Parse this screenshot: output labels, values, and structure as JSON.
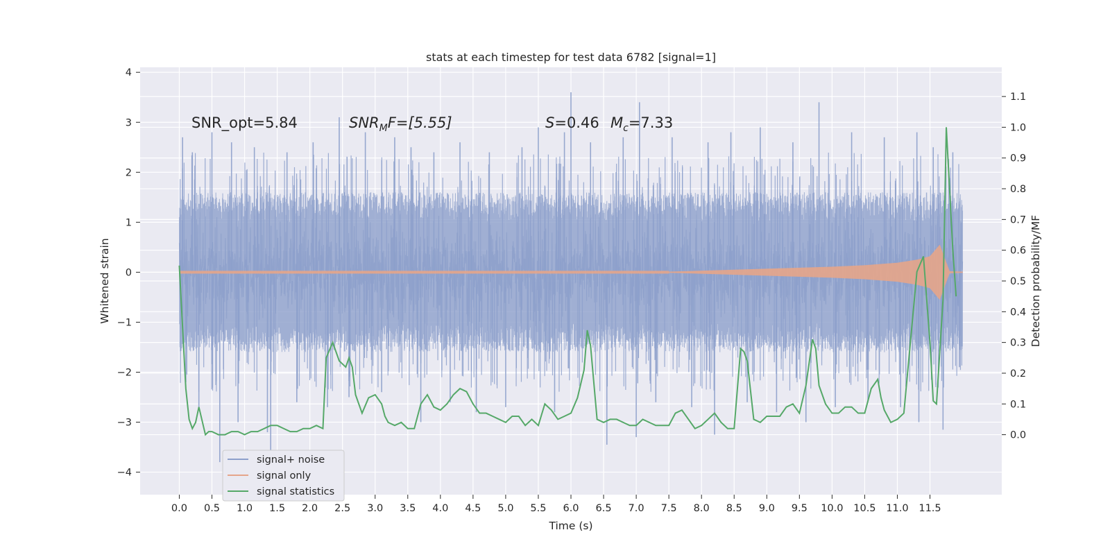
{
  "chart_data": {
    "type": "line",
    "title": "stats at each timestep for test data 6782 [signal=1]",
    "xlabel": "Time (s)",
    "ylabel": "Whitened strain",
    "ylabel_right": "Detection probability/MF",
    "xlim": [
      -0.6,
      12.6
    ],
    "ylim": [
      -4.45,
      4.1
    ],
    "ylim_right": [
      -0.195,
      1.195
    ],
    "x_ticks": [
      0.0,
      0.5,
      1.0,
      1.5,
      2.0,
      2.5,
      3.0,
      3.5,
      4.0,
      4.5,
      5.0,
      5.5,
      6.0,
      6.5,
      7.0,
      7.5,
      8.0,
      8.5,
      9.0,
      9.5,
      10.0,
      10.5,
      11.0,
      11.5
    ],
    "x_tick_labels": [
      "0.0",
      "0.5",
      "1.0",
      "1.5",
      "2.0",
      "2.5",
      "3.0",
      "3.5",
      "4.0",
      "4.5",
      "5.0",
      "5.5",
      "6.0",
      "6.5",
      "7.0",
      "7.5",
      "8.0",
      "8.5",
      "9.0",
      "9.5",
      "10.0",
      "10.5",
      "11.0",
      "11.5"
    ],
    "y_ticks": [
      -4,
      -3,
      -2,
      -1,
      0,
      1,
      2,
      3,
      4
    ],
    "y_tick_labels": [
      "−4",
      "−3",
      "−2",
      "−1",
      "0",
      "1",
      "2",
      "3",
      "4"
    ],
    "y_right_ticks": [
      0.0,
      0.1,
      0.2,
      0.3,
      0.4,
      0.5,
      0.6,
      0.7,
      0.8,
      0.9,
      1.0,
      1.1
    ],
    "y_right_tick_labels": [
      "0.0",
      "0.1",
      "0.2",
      "0.3",
      "0.4",
      "0.5",
      "0.6",
      "0.7",
      "0.8",
      "0.9",
      "1.0",
      "1.1"
    ],
    "annotations": {
      "snr_opt": "SNR_opt=5.84",
      "snr_mf_main": "SNR",
      "snr_mf_sub": "M",
      "snr_mf_rest": "F=[5.55]",
      "s_label": "S",
      "s_value": "=0.46",
      "mc_main": "M",
      "mc_sub": "c",
      "mc_value": "=7.33"
    },
    "legend": {
      "position": "lower-left",
      "entries": [
        "signal+ noise",
        "signal only",
        "signal statistics"
      ]
    },
    "series": [
      {
        "name": "signal+ noise",
        "axis": "left",
        "color": "#8da0cb",
        "x_range": [
          0.0,
          12.0
        ],
        "envelope_typical": [
          -1.7,
          1.7
        ],
        "spikes": [
          {
            "x": 0.05,
            "y": 2.7
          },
          {
            "x": 0.1,
            "y": -2.2
          },
          {
            "x": 0.2,
            "y": 2.4
          },
          {
            "x": 0.3,
            "y": -2.7
          },
          {
            "x": 0.5,
            "y": 2.8
          },
          {
            "x": 0.62,
            "y": -3.8
          },
          {
            "x": 0.8,
            "y": 2.6
          },
          {
            "x": 0.9,
            "y": -3.0
          },
          {
            "x": 1.15,
            "y": 2.5
          },
          {
            "x": 1.35,
            "y": -3.2
          },
          {
            "x": 1.4,
            "y": -3.6
          },
          {
            "x": 1.65,
            "y": 2.4
          },
          {
            "x": 1.8,
            "y": -2.6
          },
          {
            "x": 2.05,
            "y": 2.6
          },
          {
            "x": 2.27,
            "y": -2.7
          },
          {
            "x": 2.45,
            "y": 3.1
          },
          {
            "x": 2.6,
            "y": -2.5
          },
          {
            "x": 2.85,
            "y": 2.8
          },
          {
            "x": 3.1,
            "y": -2.4
          },
          {
            "x": 3.3,
            "y": 2.7
          },
          {
            "x": 3.55,
            "y": 2.5
          },
          {
            "x": 3.7,
            "y": -3.0
          },
          {
            "x": 3.9,
            "y": 2.4
          },
          {
            "x": 4.15,
            "y": -2.6
          },
          {
            "x": 4.3,
            "y": 2.6
          },
          {
            "x": 4.55,
            "y": -2.8
          },
          {
            "x": 4.75,
            "y": 2.4
          },
          {
            "x": 5.0,
            "y": -2.7
          },
          {
            "x": 5.25,
            "y": 2.5
          },
          {
            "x": 5.5,
            "y": 2.9
          },
          {
            "x": 5.75,
            "y": -2.8
          },
          {
            "x": 5.9,
            "y": 2.8
          },
          {
            "x": 6.0,
            "y": 3.6
          },
          {
            "x": 6.3,
            "y": 2.6
          },
          {
            "x": 6.55,
            "y": -3.45
          },
          {
            "x": 6.8,
            "y": 2.7
          },
          {
            "x": 7.05,
            "y": 3.4
          },
          {
            "x": 7.0,
            "y": -3.3
          },
          {
            "x": 7.3,
            "y": -2.6
          },
          {
            "x": 7.55,
            "y": 2.7
          },
          {
            "x": 7.85,
            "y": -2.7
          },
          {
            "x": 8.1,
            "y": 2.6
          },
          {
            "x": 8.2,
            "y": -3.25
          },
          {
            "x": 8.45,
            "y": 2.8
          },
          {
            "x": 8.7,
            "y": -2.6
          },
          {
            "x": 8.9,
            "y": 2.9
          },
          {
            "x": 9.15,
            "y": -2.8
          },
          {
            "x": 9.4,
            "y": 2.6
          },
          {
            "x": 9.6,
            "y": -3.0
          },
          {
            "x": 9.8,
            "y": 3.4
          },
          {
            "x": 10.05,
            "y": -2.7
          },
          {
            "x": 10.3,
            "y": 2.8
          },
          {
            "x": 10.55,
            "y": -2.6
          },
          {
            "x": 10.8,
            "y": 2.7
          },
          {
            "x": 11.05,
            "y": -2.7
          },
          {
            "x": 11.3,
            "y": 2.8
          },
          {
            "x": 11.33,
            "y": -3.0
          },
          {
            "x": 11.55,
            "y": 2.5
          },
          {
            "x": 11.7,
            "y": -3.15
          },
          {
            "x": 11.85,
            "y": 2.4
          },
          {
            "x": 11.95,
            "y": -1.9
          }
        ]
      },
      {
        "name": "signal only",
        "axis": "left",
        "color": "#e5a58a",
        "description": "chirp: amplitude ~0 until 7.5 s, growing to about 0.3 at 11.5 s, peak near 11.65 s",
        "envelope": [
          {
            "x": 0.0,
            "a": 0.01
          },
          {
            "x": 7.5,
            "a": 0.01
          },
          {
            "x": 8.0,
            "a": 0.03
          },
          {
            "x": 8.5,
            "a": 0.05
          },
          {
            "x": 9.0,
            "a": 0.07
          },
          {
            "x": 9.5,
            "a": 0.09
          },
          {
            "x": 10.0,
            "a": 0.11
          },
          {
            "x": 10.5,
            "a": 0.14
          },
          {
            "x": 11.0,
            "a": 0.19
          },
          {
            "x": 11.3,
            "a": 0.25
          },
          {
            "x": 11.5,
            "a": 0.32
          },
          {
            "x": 11.65,
            "a": 0.55
          },
          {
            "x": 11.72,
            "a": 0.3
          },
          {
            "x": 11.8,
            "a": 0.02
          },
          {
            "x": 12.0,
            "a": 0.01
          }
        ]
      },
      {
        "name": "signal statistics",
        "axis": "right",
        "color": "#55a868",
        "x": [
          0.0,
          0.1,
          0.15,
          0.2,
          0.25,
          0.3,
          0.4,
          0.45,
          0.5,
          0.6,
          0.7,
          0.8,
          0.9,
          1.0,
          1.1,
          1.2,
          1.3,
          1.4,
          1.5,
          1.6,
          1.7,
          1.8,
          1.9,
          2.0,
          2.1,
          2.2,
          2.25,
          2.35,
          2.45,
          2.55,
          2.6,
          2.65,
          2.7,
          2.8,
          2.9,
          3.0,
          3.1,
          3.15,
          3.2,
          3.3,
          3.4,
          3.5,
          3.6,
          3.7,
          3.8,
          3.9,
          4.0,
          4.1,
          4.2,
          4.3,
          4.4,
          4.5,
          4.6,
          4.7,
          4.8,
          4.9,
          5.0,
          5.1,
          5.2,
          5.3,
          5.4,
          5.5,
          5.6,
          5.7,
          5.8,
          5.9,
          6.0,
          6.1,
          6.2,
          6.25,
          6.3,
          6.4,
          6.5,
          6.6,
          6.7,
          6.8,
          6.9,
          7.0,
          7.1,
          7.2,
          7.3,
          7.4,
          7.5,
          7.6,
          7.7,
          7.8,
          7.9,
          8.0,
          8.1,
          8.2,
          8.3,
          8.4,
          8.5,
          8.6,
          8.65,
          8.7,
          8.8,
          8.9,
          9.0,
          9.1,
          9.2,
          9.3,
          9.4,
          9.5,
          9.6,
          9.7,
          9.75,
          9.8,
          9.9,
          10.0,
          10.1,
          10.2,
          10.3,
          10.4,
          10.5,
          10.6,
          10.7,
          10.75,
          10.8,
          10.9,
          11.0,
          11.1,
          11.2,
          11.3,
          11.4,
          11.5,
          11.55,
          11.6,
          11.7,
          11.75,
          11.8,
          11.85,
          11.9
        ],
        "values": [
          0.55,
          0.15,
          0.05,
          0.02,
          0.04,
          0.09,
          0.0,
          0.01,
          0.01,
          0.0,
          0.0,
          0.01,
          0.01,
          0.0,
          0.01,
          0.01,
          0.02,
          0.03,
          0.03,
          0.02,
          0.01,
          0.01,
          0.02,
          0.02,
          0.03,
          0.02,
          0.25,
          0.3,
          0.24,
          0.22,
          0.25,
          0.22,
          0.13,
          0.07,
          0.12,
          0.13,
          0.1,
          0.06,
          0.04,
          0.03,
          0.04,
          0.02,
          0.02,
          0.1,
          0.13,
          0.09,
          0.08,
          0.1,
          0.13,
          0.15,
          0.14,
          0.1,
          0.07,
          0.07,
          0.06,
          0.05,
          0.04,
          0.06,
          0.06,
          0.03,
          0.05,
          0.03,
          0.1,
          0.08,
          0.05,
          0.06,
          0.07,
          0.12,
          0.21,
          0.34,
          0.29,
          0.05,
          0.04,
          0.05,
          0.05,
          0.04,
          0.03,
          0.03,
          0.05,
          0.04,
          0.03,
          0.03,
          0.03,
          0.07,
          0.08,
          0.05,
          0.02,
          0.03,
          0.05,
          0.07,
          0.04,
          0.02,
          0.02,
          0.28,
          0.27,
          0.24,
          0.05,
          0.04,
          0.06,
          0.06,
          0.06,
          0.09,
          0.1,
          0.07,
          0.16,
          0.31,
          0.28,
          0.16,
          0.1,
          0.07,
          0.07,
          0.09,
          0.09,
          0.07,
          0.07,
          0.15,
          0.18,
          0.12,
          0.08,
          0.04,
          0.05,
          0.07,
          0.3,
          0.53,
          0.58,
          0.3,
          0.11,
          0.1,
          0.44,
          1.0,
          0.8,
          0.6,
          0.45
        ]
      }
    ]
  }
}
